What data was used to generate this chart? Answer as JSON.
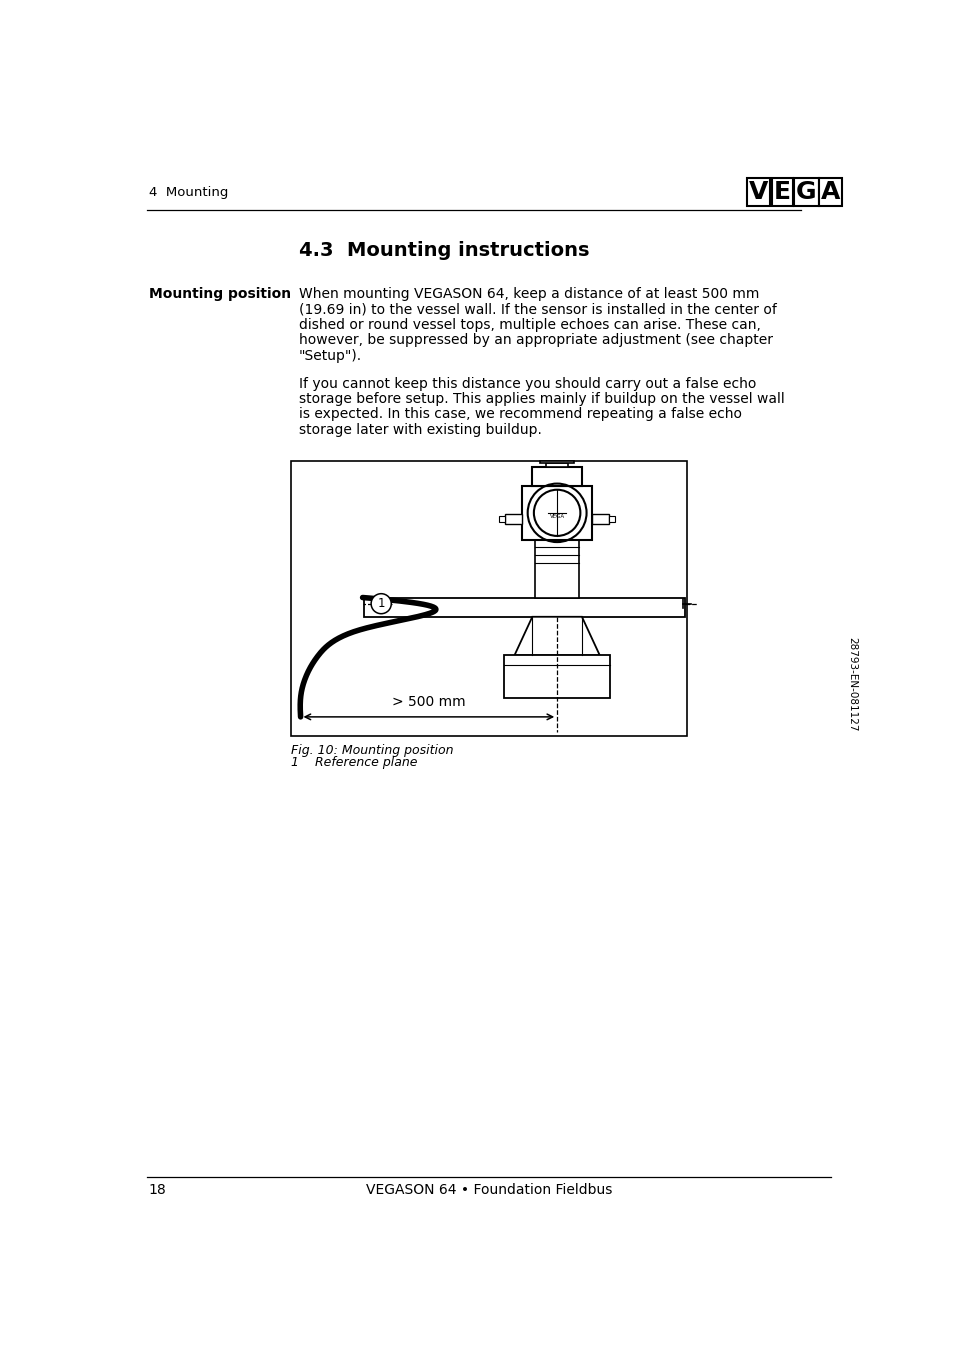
{
  "page_number": "18",
  "footer_text": "VEGASON 64 • Foundation Fieldbus",
  "header_section": "4  Mounting",
  "section_title": "4.3  Mounting instructions",
  "sidebar_label": "Mounting position",
  "para1_lines": [
    "When mounting VEGASON 64, keep a distance of at least 500 mm",
    "(19.69 in) to the vessel wall. If the sensor is installed in the center of",
    "dished or round vessel tops, multiple echoes can arise. These can,",
    "however, be suppressed by an appropriate adjustment (see chapter",
    "\"Setup\")."
  ],
  "para2_lines": [
    "If you cannot keep this distance you should carry out a false echo",
    "storage before setup. This applies mainly if buildup on the vessel wall",
    "is expected. In this case, we recommend repeating a false echo",
    "storage later with existing buildup."
  ],
  "fig_caption": "Fig. 10: Mounting position",
  "fig_note": "1    Reference plane",
  "distance_label": "> 500 mm",
  "side_number": "28793-EN-081127",
  "bg_color": "#ffffff",
  "text_color": "#000000"
}
